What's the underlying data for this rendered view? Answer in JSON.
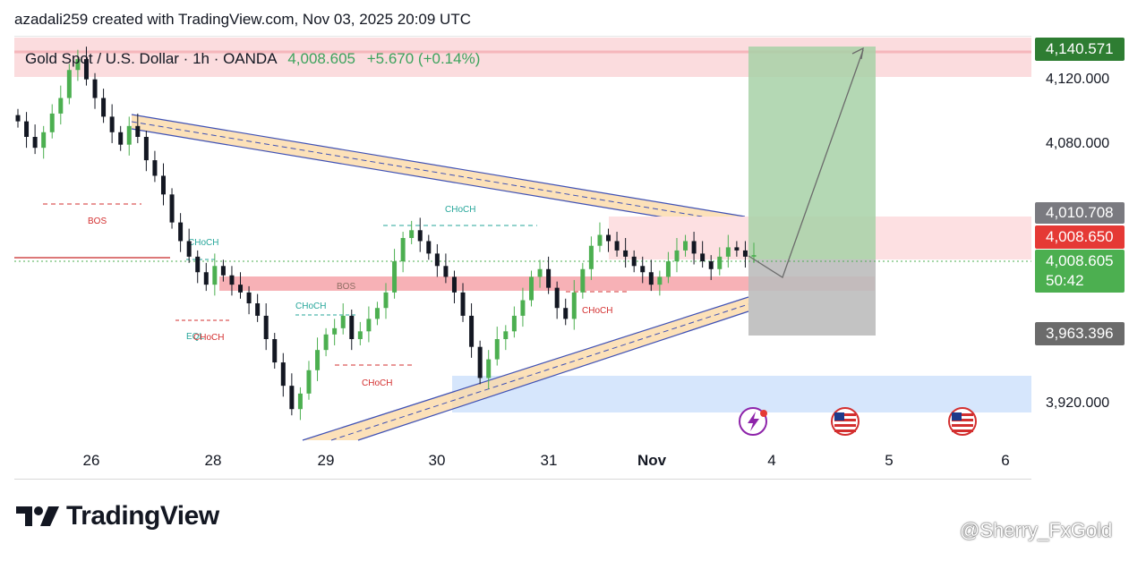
{
  "header": {
    "text": "azadali259 created with TradingView.com, Nov 03, 2025 20:09 UTC"
  },
  "symbol": {
    "name": "Gold Spot / U.S. Dollar · 1h · OANDA",
    "price": "4,008.605",
    "change": "+5.670 (+0.14%)"
  },
  "colors": {
    "up": "#4caf50",
    "down": "#131722",
    "supply": "#f8c9cc",
    "demand": "#cfe0fb",
    "channel_fill": "#f8c98a",
    "channel_line": "#3f51b5",
    "target": "#a5cfa5",
    "stop": "#b5b5b5"
  },
  "price_tags": {
    "target": "4,140.571",
    "upper": "4,010.708",
    "bid": "4,008.650",
    "last": "4,008.605",
    "countdown": "50:42",
    "stop": "3,963.396"
  },
  "chart_data": {
    "type": "candlestick",
    "ylim": [
      3890,
      4150
    ],
    "y_ticks": [
      "4,120.000",
      "4,080.000",
      "3,920.000"
    ],
    "y_tick_values": [
      4120,
      4080,
      3920
    ],
    "x_ticks": [
      "26",
      "28",
      "29",
      "30",
      "31",
      "Nov",
      "4",
      "5",
      "6"
    ],
    "annotations": [
      "BOS",
      "CHoCH",
      "CHoCH",
      "CHoCH",
      "BOS",
      "CHoCH",
      "CHoCH",
      "EQL",
      "CHoCH"
    ],
    "close_series": [
      4095,
      4085,
      4078,
      4088,
      4100,
      4110,
      4128,
      4135,
      4122,
      4110,
      4098,
      4088,
      4080,
      4092,
      4085,
      4070,
      4060,
      4048,
      4030,
      4018,
      4008,
      3998,
      3990,
      4002,
      3996,
      3990,
      3985,
      3978,
      3970,
      3955,
      3940,
      3925,
      3910,
      3920,
      3935,
      3948,
      3958,
      3962,
      3970,
      3955,
      3960,
      3968,
      3975,
      3985,
      4005,
      4020,
      4025,
      4018,
      4010,
      4002,
      3995,
      3985,
      3970,
      3950,
      3930,
      3942,
      3955,
      3960,
      3970,
      3980,
      3995,
      4000,
      3988,
      3975,
      3968,
      3985,
      4000,
      4015,
      4022,
      4018,
      4012,
      4008,
      4002,
      3998,
      3990,
      3995,
      4005,
      4012,
      4018,
      4010,
      4005,
      4000,
      4008,
      4014,
      4012,
      4008,
      4009
    ]
  }
}
